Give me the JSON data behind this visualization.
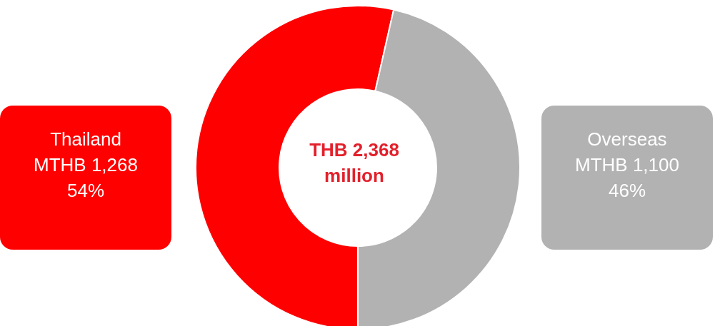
{
  "chart_data": {
    "type": "donut",
    "categories": [
      "Thailand",
      "Overseas"
    ],
    "values": [
      1268,
      1100
    ],
    "colors": [
      "#ff0000",
      "#b2b2b2"
    ],
    "value_labels": [
      "MTHB 1,268\n54%",
      "MTHB 1,100\n46%"
    ],
    "annotations": [
      "THB 2,368\nmillion"
    ],
    "legend": false
  }
}
